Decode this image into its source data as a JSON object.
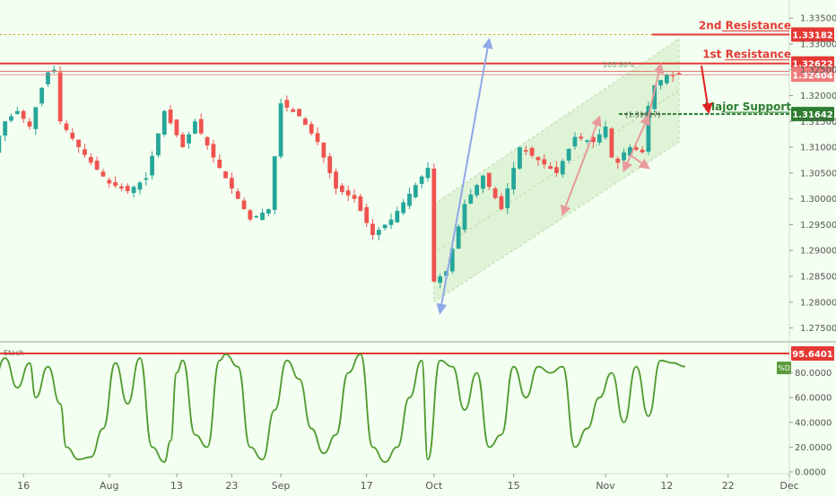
{
  "chart_data": [
    {
      "type": "candlestick",
      "title": "",
      "xlabel": "",
      "ylabel": "",
      "ylim": [
        1.2725,
        1.3385
      ],
      "y_ticks": [
        "1.33500",
        "1.33000",
        "1.32500",
        "1.32000",
        "1.31500",
        "1.31000",
        "1.30500",
        "1.30000",
        "1.29500",
        "1.29000",
        "1.28500",
        "1.28000",
        "1.27500"
      ],
      "y_tick_values": [
        1.335,
        1.33,
        1.325,
        1.32,
        1.315,
        1.31,
        1.305,
        1.3,
        1.295,
        1.29,
        1.285,
        1.28,
        1.275
      ],
      "x_ticks": [
        "16",
        "Aug",
        "13",
        "23",
        "Sep",
        "17",
        "Oct",
        "15",
        "Nov",
        "12",
        "22",
        "Dec"
      ],
      "x_tick_index": [
        5,
        19,
        30,
        39,
        47,
        61,
        72,
        85,
        100,
        110,
        120,
        130
      ],
      "close_path_index": [
        0,
        2,
        4,
        6,
        8,
        9,
        10,
        11,
        14,
        16,
        19,
        22,
        25,
        28,
        31,
        33,
        36,
        39,
        42,
        45,
        47,
        50,
        53,
        56,
        59,
        62,
        65,
        68,
        71,
        72,
        74,
        77,
        80,
        83,
        86,
        89,
        92,
        95,
        98,
        100,
        101,
        102,
        103,
        104,
        105,
        106,
        107,
        108,
        109,
        110,
        111,
        112
      ],
      "close_path_value": [
        1.3095,
        1.315,
        1.317,
        1.314,
        1.3215,
        1.3245,
        1.325,
        1.315,
        1.31,
        1.307,
        1.303,
        1.3015,
        1.304,
        1.317,
        1.31,
        1.315,
        1.308,
        1.302,
        1.296,
        1.298,
        1.3185,
        1.316,
        1.311,
        1.302,
        1.3,
        1.293,
        1.296,
        1.301,
        1.306,
        1.284,
        1.286,
        1.299,
        1.3045,
        1.298,
        1.31,
        1.3075,
        1.305,
        1.312,
        1.311,
        1.314,
        1.308,
        1.307,
        1.309,
        1.31,
        1.3095,
        1.309,
        1.318,
        1.322,
        1.323,
        1.324,
        1.3238,
        1.324
      ],
      "current_price": "1.32404",
      "levels": [
        {
          "name": "2nd Resistance",
          "value": 1.33182,
          "label": "1.33182",
          "color": "#e53935"
        },
        {
          "name": "1st Resistance",
          "value": 1.32622,
          "label": "1.32622",
          "color": "#e53935"
        },
        {
          "name": "Major Support",
          "value": 1.31642,
          "label": "1.31642",
          "color": "#2e7d32"
        }
      ],
      "fib_labels": [
        "103.80%",
        "(1.31617)"
      ],
      "colors": {
        "up": "#26a69a",
        "down": "#ef5350",
        "background": "#f3fff0",
        "channel": "#c7e7b6"
      }
    },
    {
      "type": "line",
      "name": "Stoch",
      "title": "Stoch",
      "ylim": [
        0,
        100
      ],
      "y_ticks": [
        "80.0000",
        "60.0000",
        "40.0000",
        "20.0000",
        "0.0000"
      ],
      "y_tick_values": [
        80,
        60,
        40,
        20,
        0
      ],
      "level_label": "95.6401",
      "level_value": 95.6401,
      "badge": "%D",
      "x_index": [
        0,
        2,
        4,
        6,
        7,
        9,
        11,
        12,
        14,
        16,
        18,
        20,
        22,
        24,
        26,
        28,
        29,
        30,
        31,
        33,
        35,
        37,
        38,
        40,
        42,
        44,
        46,
        48,
        50,
        52,
        54,
        56,
        58,
        60,
        62,
        64,
        66,
        68,
        70,
        71,
        73,
        75,
        77,
        79,
        81,
        83,
        85,
        87,
        89,
        91,
        93,
        95,
        97,
        99,
        101,
        103,
        105,
        107,
        109,
        111,
        113
      ],
      "values": [
        72,
        92,
        68,
        88,
        60,
        85,
        55,
        20,
        10,
        12,
        35,
        88,
        55,
        92,
        20,
        8,
        25,
        80,
        90,
        30,
        20,
        90,
        95,
        85,
        20,
        10,
        50,
        90,
        75,
        35,
        15,
        30,
        80,
        95,
        20,
        8,
        20,
        60,
        90,
        10,
        90,
        85,
        50,
        80,
        20,
        30,
        85,
        60,
        85,
        80,
        85,
        20,
        35,
        60,
        80,
        40,
        85,
        45,
        90,
        88,
        85
      ],
      "color": "#4e9a2e"
    }
  ]
}
